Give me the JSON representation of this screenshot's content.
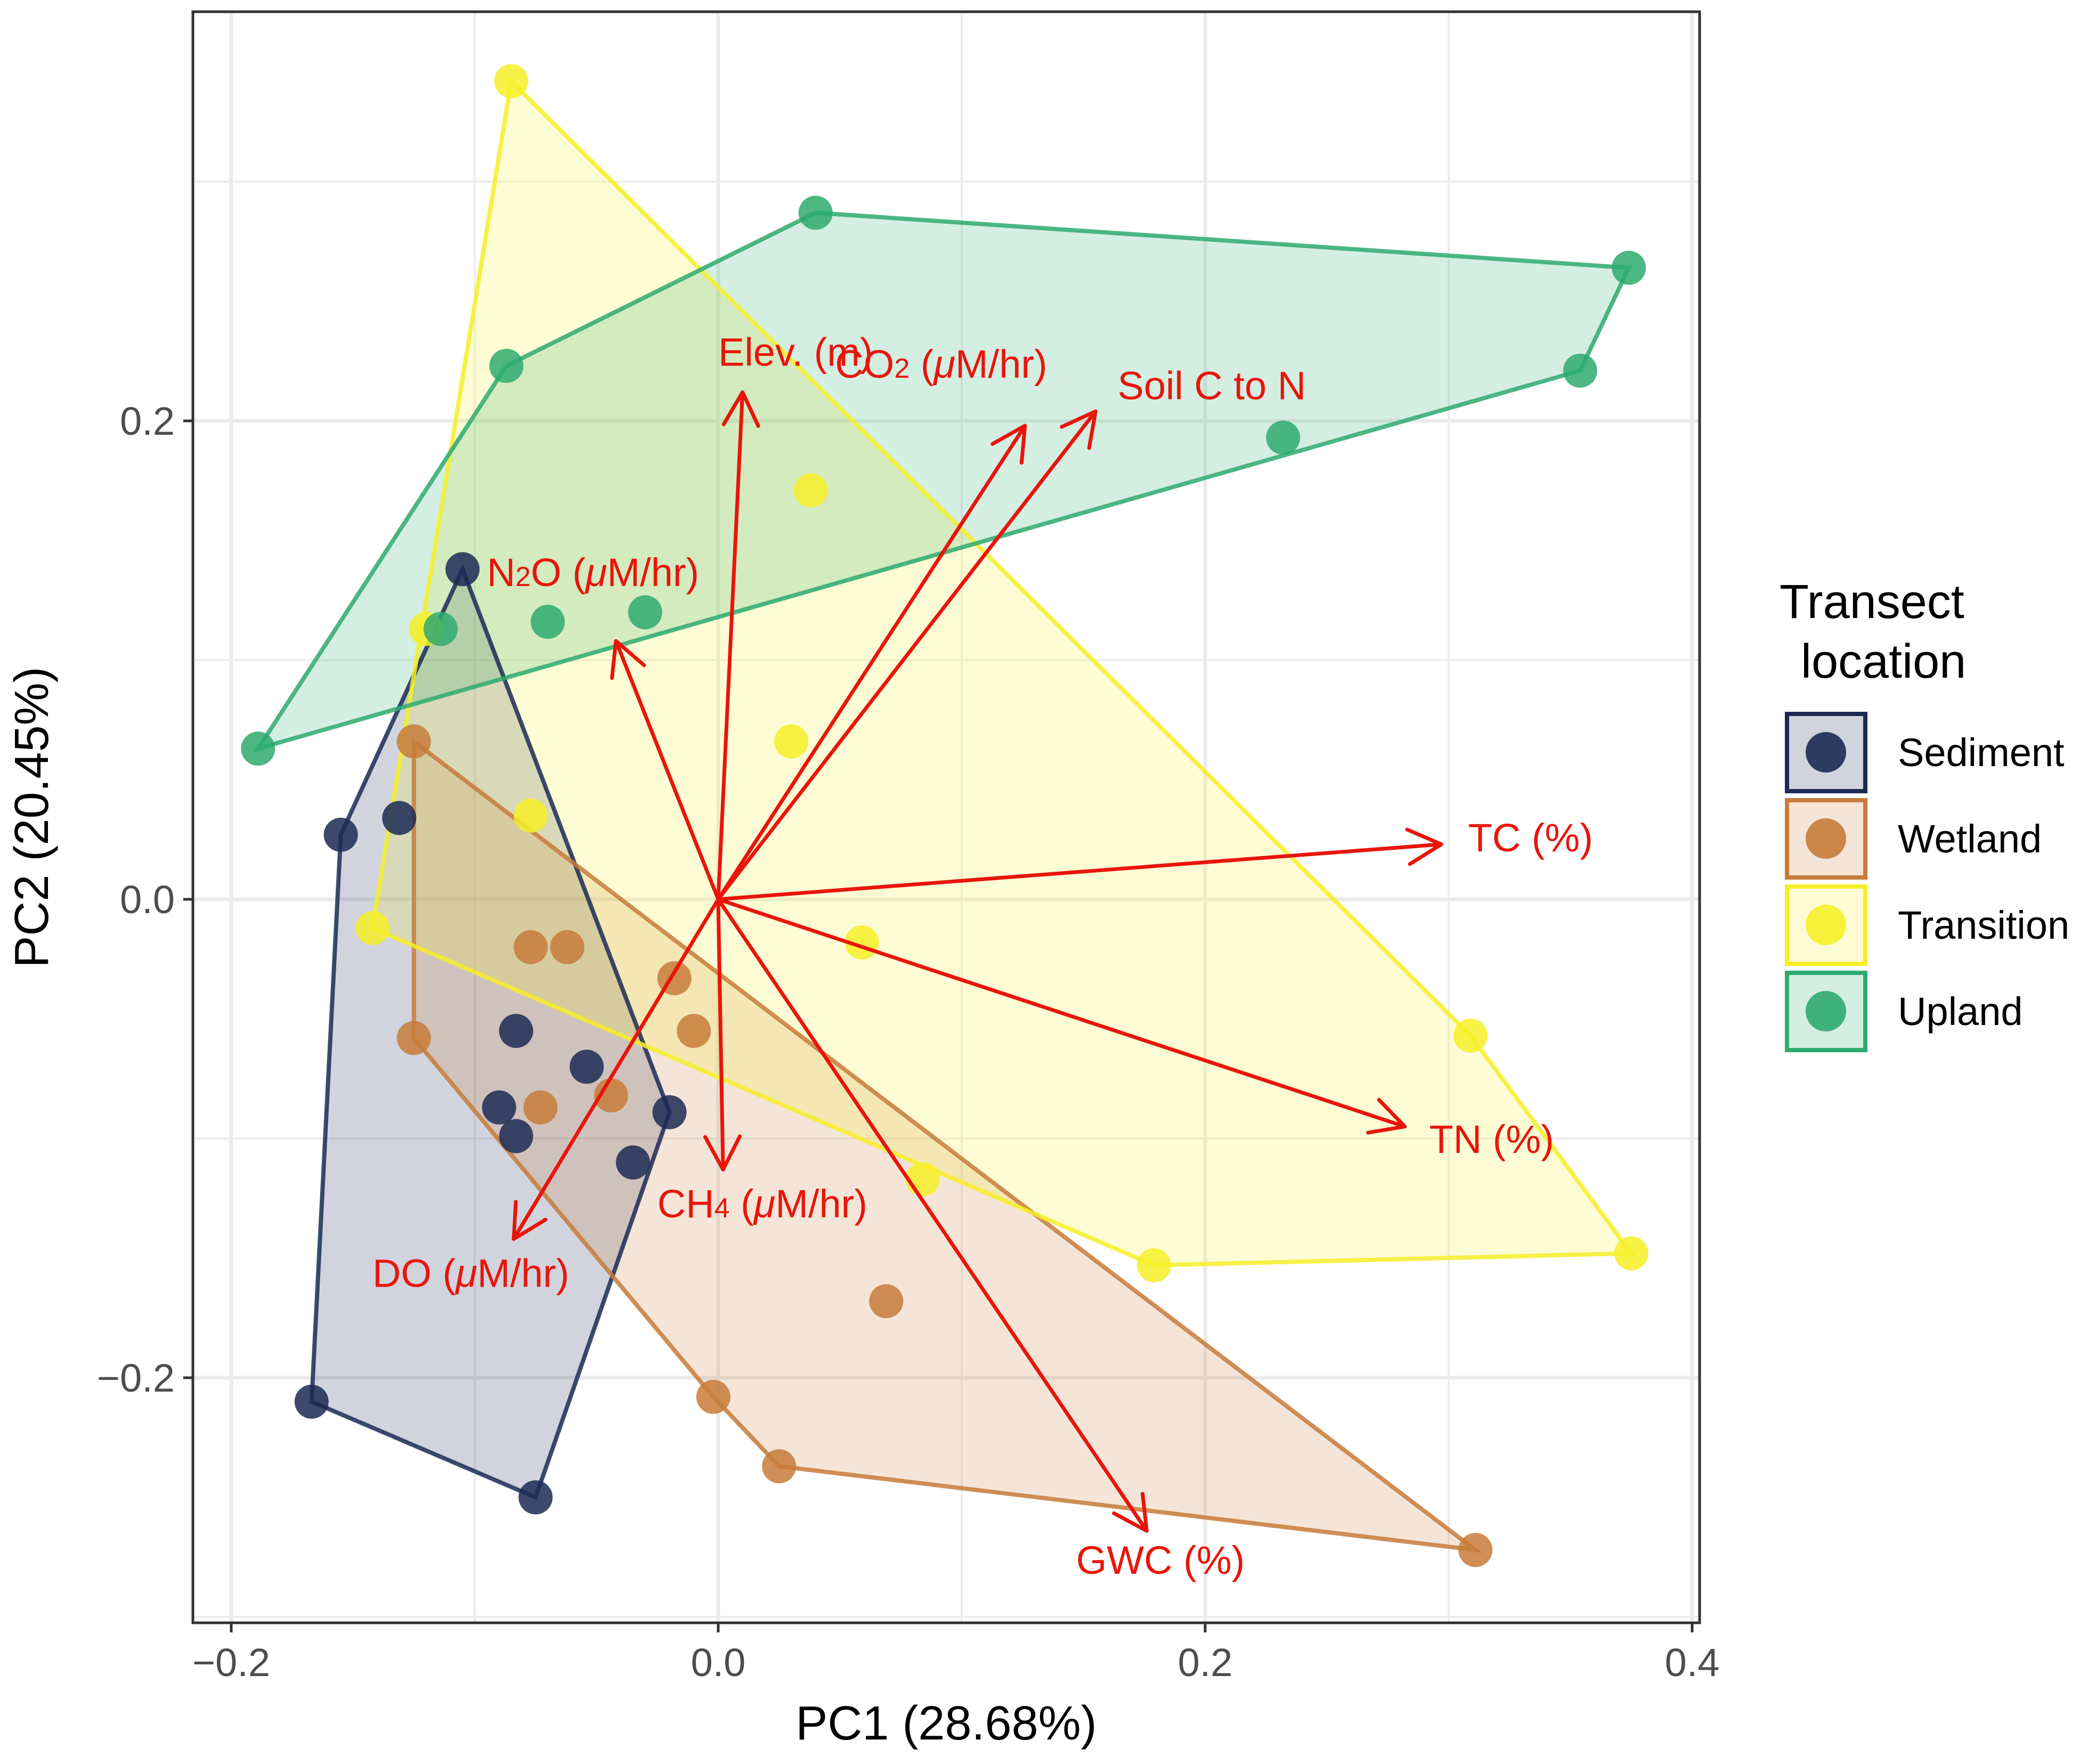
{
  "chart_data": {
    "type": "scatter",
    "subtype": "pca-biplot",
    "xlabel": "PC1 (28.68%)",
    "ylabel": "PC2 (20.45%)",
    "xlim": [
      -0.22,
      0.4
    ],
    "ylim": [
      -0.3,
      0.37
    ],
    "x_ticks": [
      {
        "value": -0.2,
        "label": "−0.2"
      },
      {
        "value": 0.0,
        "label": "0.0"
      },
      {
        "value": 0.2,
        "label": "0.2"
      },
      {
        "value": 0.4,
        "label": "0.4"
      }
    ],
    "y_ticks": [
      {
        "value": -0.2,
        "label": "−0.2"
      },
      {
        "value": 0.0,
        "label": "0.0"
      },
      {
        "value": 0.2,
        "label": "0.2"
      }
    ],
    "grid": true,
    "legend": {
      "title_lines": [
        "Transect",
        "location"
      ],
      "position": "right"
    },
    "series": [
      {
        "name": "Sediment",
        "color": "#1b2a55",
        "fill": "#1b2a55",
        "points": [
          [
            -0.155,
            0.027
          ],
          [
            -0.131,
            0.034
          ],
          [
            -0.105,
            0.138
          ],
          [
            -0.167,
            -0.21
          ],
          [
            -0.075,
            -0.25
          ],
          [
            -0.083,
            -0.055
          ],
          [
            -0.09,
            -0.087
          ],
          [
            -0.083,
            -0.099
          ],
          [
            -0.054,
            -0.07
          ],
          [
            -0.02,
            -0.089
          ],
          [
            -0.035,
            -0.11
          ]
        ],
        "hull": [
          [
            -0.167,
            -0.21
          ],
          [
            -0.075,
            -0.25
          ],
          [
            -0.02,
            -0.089
          ],
          [
            -0.105,
            0.138
          ],
          [
            -0.155,
            0.027
          ]
        ]
      },
      {
        "name": "Wetland",
        "color": "#c77b3a",
        "fill": "#c77b3a",
        "points": [
          [
            -0.125,
            0.066
          ],
          [
            -0.125,
            -0.058
          ],
          [
            -0.077,
            -0.02
          ],
          [
            -0.062,
            -0.02
          ],
          [
            -0.018,
            -0.033
          ],
          [
            -0.01,
            -0.055
          ],
          [
            -0.073,
            -0.087
          ],
          [
            -0.044,
            -0.082
          ],
          [
            0.069,
            -0.168
          ],
          [
            -0.002,
            -0.208
          ],
          [
            0.025,
            -0.237
          ],
          [
            0.311,
            -0.272
          ]
        ],
        "hull": [
          [
            -0.125,
            0.066
          ],
          [
            0.311,
            -0.272
          ],
          [
            0.025,
            -0.237
          ],
          [
            -0.002,
            -0.208
          ],
          [
            -0.125,
            -0.058
          ]
        ]
      },
      {
        "name": "Transition",
        "color": "#f6ef28",
        "fill": "#f6ef28",
        "points": [
          [
            -0.085,
            0.342
          ],
          [
            0.038,
            0.171
          ],
          [
            -0.12,
            0.113
          ],
          [
            0.03,
            0.066
          ],
          [
            -0.077,
            0.035
          ],
          [
            -0.142,
            -0.012
          ],
          [
            0.059,
            -0.018
          ],
          [
            0.084,
            -0.117
          ],
          [
            0.179,
            -0.153
          ],
          [
            0.309,
            -0.057
          ],
          [
            0.375,
            -0.148
          ]
        ],
        "hull": [
          [
            -0.085,
            0.342
          ],
          [
            0.309,
            -0.057
          ],
          [
            0.375,
            -0.148
          ],
          [
            0.179,
            -0.153
          ],
          [
            -0.142,
            -0.012
          ]
        ]
      },
      {
        "name": "Upland",
        "color": "#2eaa6f",
        "fill": "#2eaa6f",
        "points": [
          [
            0.04,
            0.287
          ],
          [
            0.374,
            0.264
          ],
          [
            0.354,
            0.221
          ],
          [
            0.232,
            0.193
          ],
          [
            -0.087,
            0.223
          ],
          [
            -0.07,
            0.116
          ],
          [
            -0.03,
            0.12
          ],
          [
            -0.114,
            0.113
          ],
          [
            -0.189,
            0.063
          ]
        ],
        "hull": [
          [
            -0.189,
            0.063
          ],
          [
            -0.087,
            0.223
          ],
          [
            0.04,
            0.287
          ],
          [
            0.374,
            0.264
          ],
          [
            0.354,
            0.221
          ]
        ]
      }
    ],
    "loadings": [
      {
        "label_parts": [
          {
            "t": "Elev. (m)"
          }
        ],
        "x": 0.01,
        "y": 0.212,
        "lx": 0.0,
        "ly": 0.223,
        "anchor": "end"
      },
      {
        "label_parts": [
          {
            "t": "CO"
          },
          {
            "t": "2",
            "sub": true
          },
          {
            "t": " ("
          },
          {
            "t": "μ",
            "it": true
          },
          {
            "t": "M/hr)"
          }
        ],
        "x": 0.126,
        "y": 0.198,
        "lx": 0.048,
        "ly": 0.218,
        "anchor": "start"
      },
      {
        "label_parts": [
          {
            "t": "Soil C to N"
          }
        ],
        "x": 0.155,
        "y": 0.204,
        "lx": 0.164,
        "ly": 0.209,
        "anchor": "start"
      },
      {
        "label_parts": [
          {
            "t": "N"
          },
          {
            "t": "2",
            "sub": true
          },
          {
            "t": "O ("
          },
          {
            "t": "μ",
            "it": true
          },
          {
            "t": "M/hr)"
          }
        ],
        "x": -0.042,
        "y": 0.108,
        "lx": -0.095,
        "ly": 0.131,
        "anchor": "start"
      },
      {
        "label_parts": [
          {
            "t": "TC (%)"
          }
        ],
        "x": 0.297,
        "y": 0.023,
        "lx": 0.308,
        "ly": 0.02,
        "anchor": "start"
      },
      {
        "label_parts": [
          {
            "t": "TN (%)"
          }
        ],
        "x": 0.282,
        "y": -0.095,
        "lx": 0.292,
        "ly": -0.106,
        "anchor": "start"
      },
      {
        "label_parts": [
          {
            "t": "CH"
          },
          {
            "t": "4",
            "sub": true
          },
          {
            "t": " ("
          },
          {
            "t": "μ",
            "it": true
          },
          {
            "t": "M/hr)"
          }
        ],
        "x": 0.002,
        "y": -0.113,
        "lx": -0.025,
        "ly": -0.133,
        "anchor": "start"
      },
      {
        "label_parts": [
          {
            "t": "DO ("
          },
          {
            "t": "μ",
            "it": true
          },
          {
            "t": "M/hr)"
          }
        ],
        "x": -0.084,
        "y": -0.142,
        "lx": -0.142,
        "ly": -0.162,
        "anchor": "start"
      },
      {
        "label_parts": [
          {
            "t": "GWC (%)"
          }
        ],
        "x": 0.176,
        "y": -0.264,
        "lx": 0.147,
        "ly": -0.282,
        "anchor": "start"
      }
    ],
    "loading_color": "#e8150b"
  }
}
